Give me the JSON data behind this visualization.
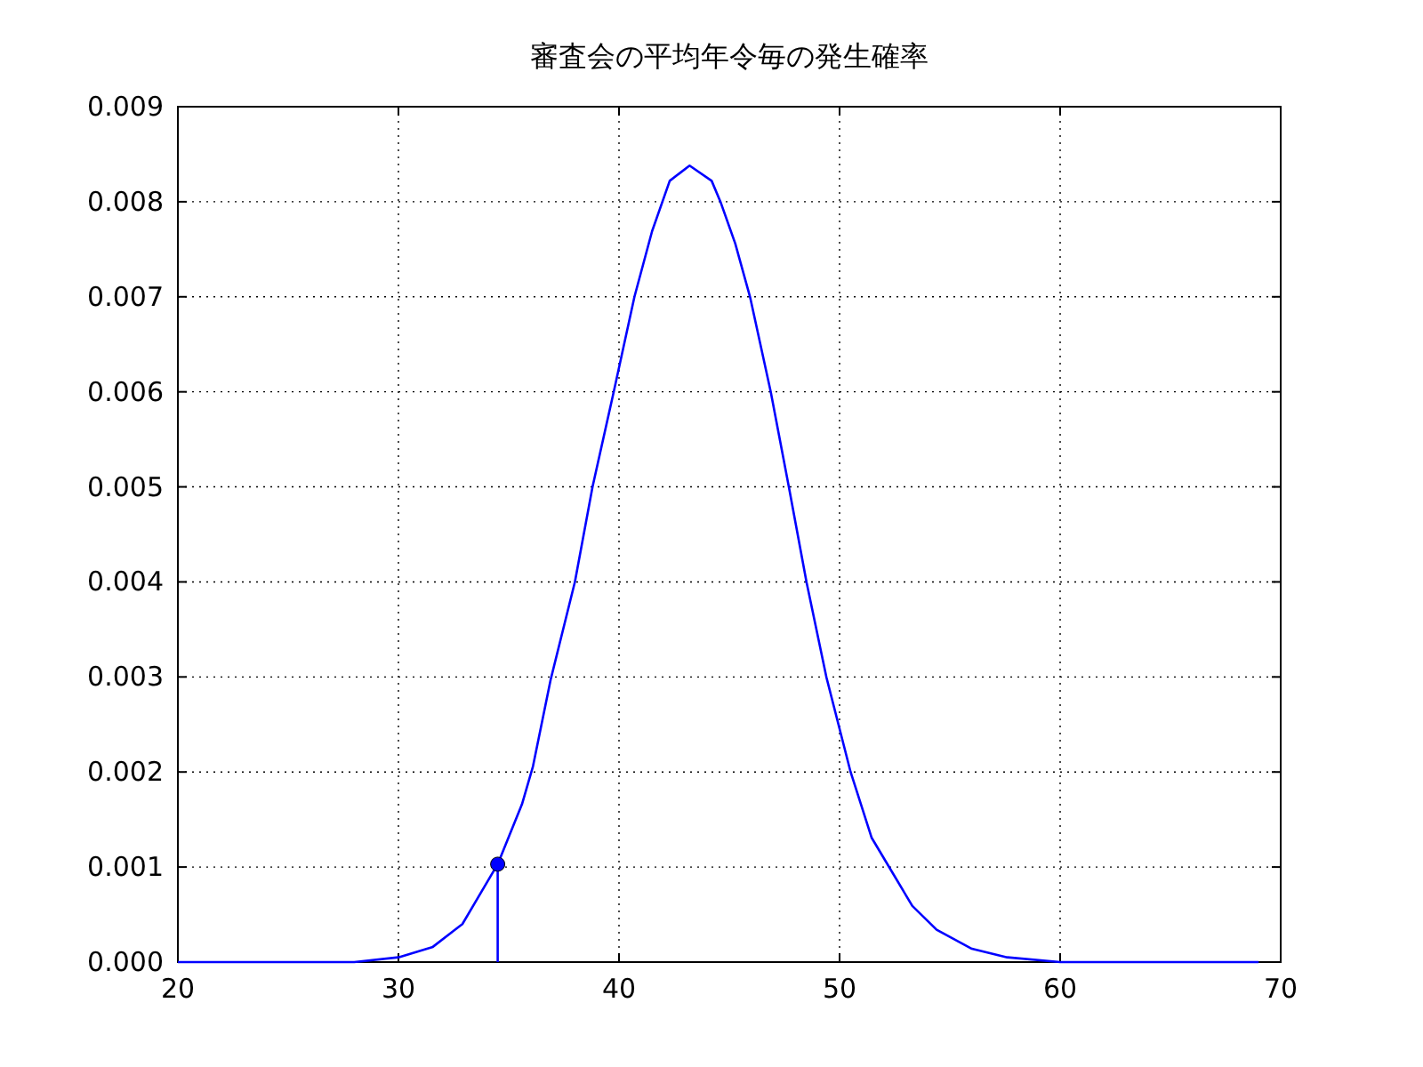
{
  "chart_data": {
    "type": "line",
    "title": "審査会の平均年令毎の発生確率",
    "xlim": [
      20,
      70
    ],
    "xticks": [
      20,
      30,
      40,
      50,
      60,
      70
    ],
    "ylim": [
      0,
      0.009
    ],
    "yticks": [
      {
        "value": 0,
        "label": "0.000"
      },
      {
        "value": 0.001,
        "label": "0.001"
      },
      {
        "value": 0.002,
        "label": "0.002"
      },
      {
        "value": 0.003,
        "label": "0.003"
      },
      {
        "value": 0.004,
        "label": "0.004"
      },
      {
        "value": 0.005,
        "label": "0.005"
      },
      {
        "value": 0.006,
        "label": "0.006"
      },
      {
        "value": 0.007,
        "label": "0.007"
      },
      {
        "value": 0.008,
        "label": "0.008"
      },
      {
        "value": 0.009,
        "label": "0.009"
      }
    ],
    "grid": true,
    "series": [
      {
        "type": "line",
        "color": "#0000ff",
        "marker": "none",
        "line_style": "solid",
        "x": [
          20,
          28,
          30,
          31.56,
          32.9,
          34.5,
          35.6,
          36.1,
          36.9,
          38.0,
          38.8,
          39.76,
          40.7,
          41.5,
          42.3,
          43.2,
          44.2,
          44.6,
          45.27,
          45.94,
          46.88,
          47.7,
          48.5,
          49.4,
          50.5,
          51.45,
          52.4,
          53.3,
          54.4,
          56.0,
          57.6,
          60.0,
          69.0
        ],
        "values": [
          0,
          0,
          5e-05,
          0.00016,
          0.0004,
          0.00103,
          0.00166,
          0.00206,
          0.00297,
          0.004,
          0.005,
          0.006,
          0.007,
          0.00769,
          0.00822,
          0.00838,
          0.00822,
          0.008,
          0.00756,
          0.007,
          0.006,
          0.005,
          0.004,
          0.003,
          0.002,
          0.00131,
          0.00094,
          0.00059,
          0.00034,
          0.00014,
          5e-05,
          0,
          0
        ]
      },
      {
        "type": "lollipop",
        "color": "#0000ff",
        "marker": "circle",
        "x": [
          34.5
        ],
        "values": [
          0.00103
        ]
      }
    ]
  }
}
